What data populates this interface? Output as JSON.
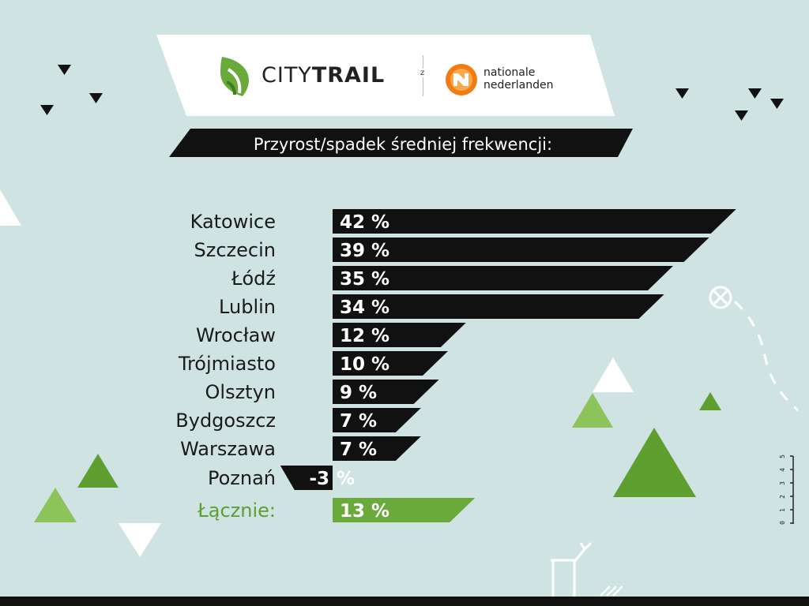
{
  "header": {
    "brand_light": "CITY",
    "brand_bold": "TRAIL",
    "connector": "z",
    "partner_line1": "nationale",
    "partner_line2": "nederlanden"
  },
  "chart_data": {
    "type": "bar",
    "title": "Przyrost/spadek średniej frekwencji:",
    "unit": "%",
    "categories": [
      "Katowice",
      "Szczecin",
      "Łódź",
      "Lublin",
      "Wrocław",
      "Trójmiasto",
      "Olsztyn",
      "Bydgoszcz",
      "Warszawa",
      "Poznań",
      "Łącznie:"
    ],
    "values": [
      42,
      39,
      35,
      34,
      12,
      10,
      9,
      7,
      7,
      -3,
      13
    ],
    "value_labels": [
      "42 %",
      "39 %",
      "35 %",
      "34 %",
      "12 %",
      "10 %",
      "9 %",
      "7 %",
      "7 %",
      "-3",
      "13 %"
    ],
    "negative_suffix": "%",
    "orientation": "horizontal",
    "colors": {
      "bar": "#111111",
      "total_bar": "#6aaa3a",
      "total_label": "#5e9e33",
      "negative_suffix": "#ffffff"
    }
  },
  "scale": {
    "numbers": [
      "5",
      "4",
      "3",
      "2",
      "1",
      "0"
    ]
  },
  "colors": {
    "background": "#cfe3e3",
    "green_dark": "#5f9f2f",
    "green_light": "#8cc35a",
    "white": "#ffffff"
  }
}
